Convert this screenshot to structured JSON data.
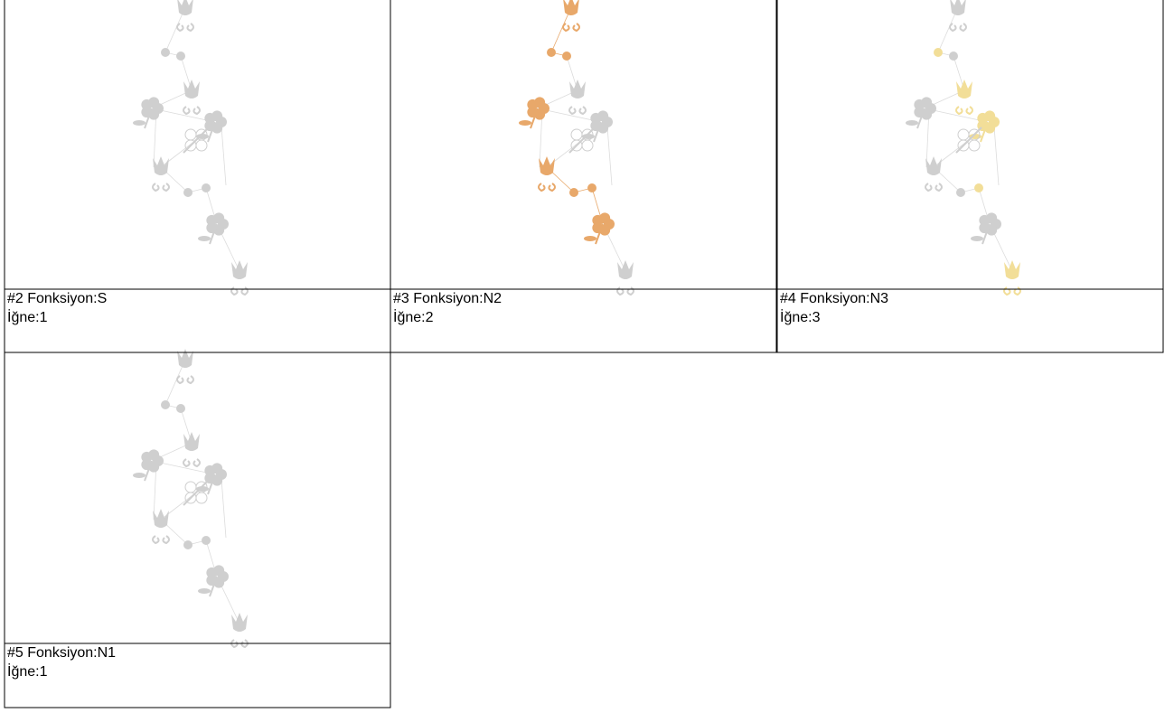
{
  "cells": [
    {
      "title": "#2 Fonksiyon:S",
      "needle": "İğne:1"
    },
    {
      "title": "#3 Fonksiyon:N2",
      "needle": "İğne:2",
      "highlight": "#e8a86a"
    },
    {
      "title": "#4 Fonksiyon:N3",
      "needle": "İğne:3",
      "highlight": "#f2de98"
    },
    {
      "title": "#5 Fonksiyon:N1",
      "needle": "İğne:1"
    }
  ]
}
